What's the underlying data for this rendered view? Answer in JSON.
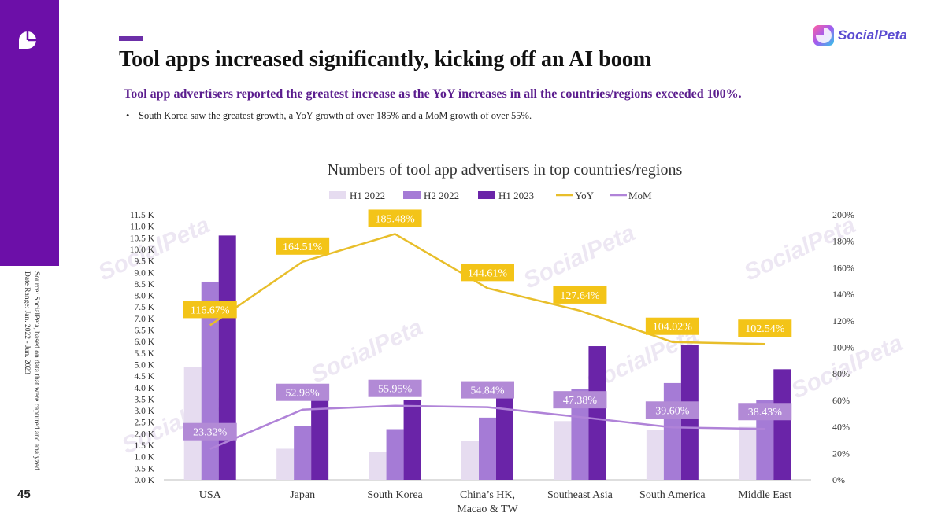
{
  "page": {
    "title": "Tool apps increased significantly, kicking off an AI boom",
    "subtitle": "Tool app advertisers reported the greatest increase as the YoY increases in all the countries/regions exceeded 100%.",
    "bullet": "South Korea saw the greatest growth, a YoY growth of over 185% and a MoM growth of over 55%.",
    "source_line1": "Source: SocialPeta, based on data that were captured and analyzed",
    "source_line2": "Date Range: Jan. 2022 - Jun. 2023",
    "page_number": "45",
    "brand": "SocialPeta",
    "watermark_text": "SocialPeta"
  },
  "colors": {
    "sidebar": "#6c0fa8",
    "h1_2022": "#e6dcf0",
    "h2_2022": "#a57bd6",
    "h1_2023": "#6a24a8",
    "yoy": "#e8be2a",
    "mom": "#b083d8",
    "yoy_label_bg": "#f3c418",
    "mom_label_bg": "#b28ad6"
  },
  "chart_data": {
    "type": "bar",
    "title": "Numbers of tool app advertisers in top countries/regions",
    "categories": [
      "USA",
      "Japan",
      "South Korea",
      "China’s HK, Macao & TW",
      "Southeast Asia",
      "South America",
      "Middle East"
    ],
    "category_lines": [
      [
        "USA"
      ],
      [
        "Japan"
      ],
      [
        "South Korea"
      ],
      [
        "China’s HK,",
        "Macao & TW"
      ],
      [
        "Southeast Asia"
      ],
      [
        "South America"
      ],
      [
        "Middle East"
      ]
    ],
    "series": [
      {
        "name": "H1 2022",
        "type": "bar",
        "values": [
          4900,
          1350,
          1200,
          1700,
          2550,
          2150,
          2300
        ]
      },
      {
        "name": "H2 2022",
        "type": "bar",
        "values": [
          8600,
          2350,
          2200,
          2700,
          3950,
          4200,
          3450
        ]
      },
      {
        "name": "H1 2023",
        "type": "bar",
        "values": [
          10600,
          3600,
          3450,
          4150,
          5800,
          5850,
          4800
        ]
      },
      {
        "name": "YoY",
        "type": "line",
        "axis": "right",
        "values": [
          116.67,
          164.51,
          185.48,
          144.61,
          127.64,
          104.02,
          102.54
        ],
        "labels": [
          "116.67%",
          "164.51%",
          "185.48%",
          "144.61%",
          "127.64%",
          "104.02%",
          "102.54%"
        ]
      },
      {
        "name": "MoM",
        "type": "line",
        "axis": "right",
        "values": [
          23.32,
          52.98,
          55.95,
          54.84,
          47.38,
          39.6,
          38.43
        ],
        "labels": [
          "23.32%",
          "52.98%",
          "55.95%",
          "54.84%",
          "47.38%",
          "39.60%",
          "38.43%"
        ]
      }
    ],
    "y_left": {
      "min": 0,
      "max": 11500,
      "step": 500,
      "tick_labels": [
        "0.0 K",
        "0.5 K",
        "1.0 K",
        "1.5 K",
        "2.0 K",
        "2.5 K",
        "3.0 K",
        "3.5 K",
        "4.0 K",
        "4.5 K",
        "5.0 K",
        "5.5 K",
        "6.0 K",
        "6.5 K",
        "7.0 K",
        "7.5 K",
        "8.0 K",
        "8.5 K",
        "9.0 K",
        "9.5 K",
        "10.0 K",
        "10.5 K",
        "11.0 K",
        "11.5 K"
      ]
    },
    "y_right": {
      "min": 0,
      "max": 200,
      "step": 20,
      "tick_labels": [
        "0%",
        "20%",
        "40%",
        "60%",
        "80%",
        "100%",
        "120%",
        "140%",
        "160%",
        "180%",
        "200%"
      ]
    },
    "legend": [
      "H1 2022",
      "H2 2022",
      "H1 2023",
      "YoY",
      "MoM"
    ],
    "legend_position": "top-center",
    "grid": false
  }
}
